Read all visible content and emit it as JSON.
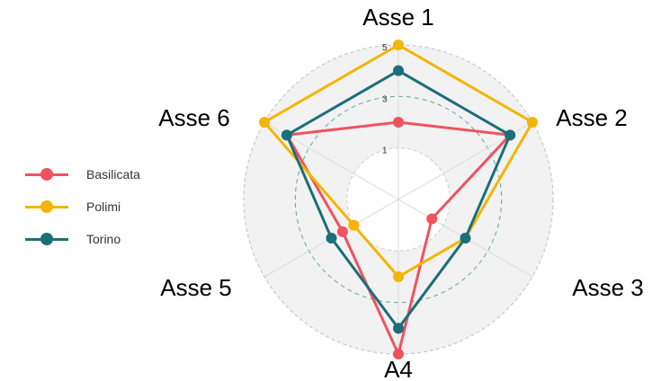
{
  "chart_data": {
    "type": "radar",
    "axes": [
      "Asse 1",
      "Asse 2",
      "Asse 3",
      "A4",
      "Asse 5",
      "Asse 6"
    ],
    "rlim": [
      -1,
      5
    ],
    "rings": [
      1,
      3,
      5
    ],
    "tick_labels": [
      "1",
      "3",
      "5"
    ],
    "grid": true,
    "legend_position": "left",
    "series": [
      {
        "name": "Basilicata",
        "color": "#f0525f",
        "values": [
          2,
          4,
          0.5,
          5,
          1.5,
          4
        ]
      },
      {
        "name": "Polimi",
        "color": "#f5b400",
        "values": [
          5,
          5,
          2,
          2,
          1,
          5
        ]
      },
      {
        "name": "Torino",
        "color": "#1b6e7a",
        "values": [
          4,
          4,
          2,
          4,
          2,
          4
        ]
      }
    ]
  }
}
